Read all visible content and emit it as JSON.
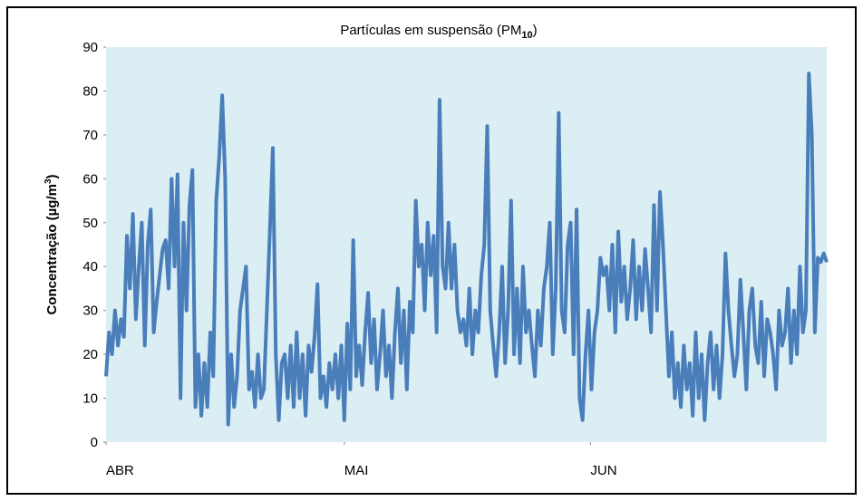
{
  "chart_data": {
    "type": "line",
    "title": "Partículas em suspensão (PM",
    "title_subscript": "10",
    "title_end": ")",
    "ylabel": "Concentração (µg/m",
    "ylabel_superscript": "3",
    "ylabel_end": ")",
    "xlim": [
      0,
      90.75
    ],
    "xticks": [
      {
        "value": 0,
        "label": "ABR"
      },
      {
        "value": 30,
        "label": "MAI"
      },
      {
        "value": 61,
        "label": "JUN"
      }
    ],
    "ylim": [
      0,
      90
    ],
    "yticks": [
      0,
      10,
      20,
      30,
      40,
      50,
      60,
      70,
      80,
      90
    ],
    "grid": false,
    "background": "#dbeef4",
    "series": [
      {
        "color": "#4a7ebb",
        "x": [
          0,
          0.375,
          0.75,
          1.125,
          1.5,
          1.875,
          2.25,
          2.625,
          3,
          3.375,
          3.75,
          4.125,
          4.5,
          4.875,
          5.25,
          5.625,
          6,
          6.375,
          6.75,
          7.125,
          7.5,
          7.875,
          8.25,
          8.625,
          9,
          9.375,
          9.75,
          10.125,
          10.5,
          10.875,
          11.25,
          11.625,
          12,
          12.375,
          12.75,
          13.125,
          13.5,
          13.875,
          14.25,
          14.625,
          15,
          15.375,
          15.75,
          16.125,
          16.5,
          16.875,
          17.25,
          17.625,
          18,
          18.375,
          18.75,
          19.125,
          19.5,
          19.875,
          20.25,
          20.625,
          21,
          21.375,
          21.75,
          22.125,
          22.5,
          22.875,
          23.25,
          23.625,
          24,
          24.375,
          24.75,
          25.125,
          25.5,
          25.875,
          26.25,
          26.625,
          27,
          27.375,
          27.75,
          28.125,
          28.5,
          28.875,
          29.25,
          29.625,
          30,
          30.375,
          30.75,
          31.125,
          31.5,
          31.875,
          32.25,
          32.625,
          33,
          33.375,
          33.75,
          34.125,
          34.5,
          34.875,
          35.25,
          35.625,
          36,
          36.375,
          36.75,
          37.125,
          37.5,
          37.875,
          38.25,
          38.625,
          39,
          39.375,
          39.75,
          40.125,
          40.5,
          40.875,
          41.25,
          41.625,
          42,
          42.375,
          42.75,
          43.125,
          43.5,
          43.875,
          44.25,
          44.625,
          45,
          45.375,
          45.75,
          46.125,
          46.5,
          46.875,
          47.25,
          47.625,
          48,
          48.375,
          48.75,
          49.125,
          49.5,
          49.875,
          50.25,
          50.625,
          51,
          51.375,
          51.75,
          52.125,
          52.5,
          52.875,
          53.25,
          53.625,
          54,
          54.375,
          54.75,
          55.125,
          55.5,
          55.875,
          56.25,
          56.625,
          57,
          57.375,
          57.75,
          58.125,
          58.5,
          58.875,
          59.25,
          59.625,
          60,
          60.375,
          60.75,
          61.125,
          61.5,
          61.875,
          62.25,
          62.625,
          63,
          63.375,
          63.75,
          64.125,
          64.5,
          64.875,
          65.25,
          65.625,
          66,
          66.375,
          66.75,
          67.125,
          67.5,
          67.875,
          68.25,
          68.625,
          69,
          69.375,
          69.75,
          70.125,
          70.5,
          70.875,
          71.25,
          71.625,
          72,
          72.375,
          72.75,
          73.125,
          73.5,
          73.875,
          74.25,
          74.625,
          75,
          75.375,
          75.75,
          76.125,
          76.5,
          76.875,
          77.25,
          77.625,
          78,
          78.375,
          78.75,
          79.125,
          79.5,
          79.875,
          80.25,
          80.625,
          81,
          81.375,
          81.75,
          82.125,
          82.5,
          82.875,
          83.25,
          83.625,
          84,
          84.375,
          84.75,
          85.125,
          85.5,
          85.875,
          86.25,
          86.625,
          87,
          87.375,
          87.75,
          88.125,
          88.5,
          88.875,
          89.25,
          89.625,
          90,
          90.375,
          90.75
        ],
        "values": [
          15,
          25,
          20,
          30,
          22,
          28,
          24,
          47,
          35,
          52,
          28,
          40,
          50,
          22,
          45,
          53,
          25,
          32,
          38,
          44,
          46,
          35,
          60,
          40,
          61,
          10,
          50,
          30,
          54,
          62,
          8,
          20,
          6,
          18,
          8,
          25,
          15,
          55,
          65,
          79,
          60,
          4,
          20,
          8,
          15,
          30,
          35,
          40,
          12,
          16,
          8,
          20,
          10,
          12,
          30,
          48,
          67,
          20,
          5,
          18,
          20,
          10,
          22,
          8,
          25,
          10,
          20,
          6,
          22,
          16,
          24,
          36,
          10,
          15,
          8,
          18,
          12,
          20,
          10,
          22,
          5,
          27,
          12,
          46,
          15,
          22,
          13,
          25,
          34,
          18,
          28,
          12,
          20,
          30,
          15,
          22,
          10,
          25,
          35,
          18,
          30,
          12,
          32,
          25,
          55,
          40,
          45,
          30,
          50,
          38,
          47,
          25,
          78,
          40,
          35,
          50,
          35,
          45,
          30,
          25,
          28,
          22,
          35,
          20,
          30,
          25,
          38,
          45,
          72,
          30,
          22,
          15,
          25,
          40,
          18,
          30,
          55,
          20,
          35,
          18,
          40,
          25,
          30,
          22,
          15,
          30,
          22,
          35,
          40,
          50,
          20,
          35,
          75,
          30,
          25,
          45,
          50,
          20,
          53,
          10,
          5,
          20,
          30,
          12,
          25,
          30,
          42,
          38,
          40,
          30,
          45,
          25,
          48,
          32,
          40,
          28,
          35,
          46,
          28,
          40,
          30,
          44,
          35,
          25,
          54,
          30,
          57,
          45,
          30,
          15,
          25,
          10,
          18,
          8,
          22,
          12,
          18,
          6,
          25,
          10,
          20,
          5,
          18,
          25,
          12,
          22,
          10,
          20,
          43,
          30,
          22,
          15,
          20,
          37,
          25,
          12,
          30,
          35,
          22,
          18,
          32,
          15,
          28,
          25,
          20,
          12,
          30,
          22,
          25,
          35,
          18,
          30,
          20,
          40,
          25,
          30,
          84,
          70,
          25,
          42,
          41,
          43,
          41
        ]
      }
    ]
  }
}
